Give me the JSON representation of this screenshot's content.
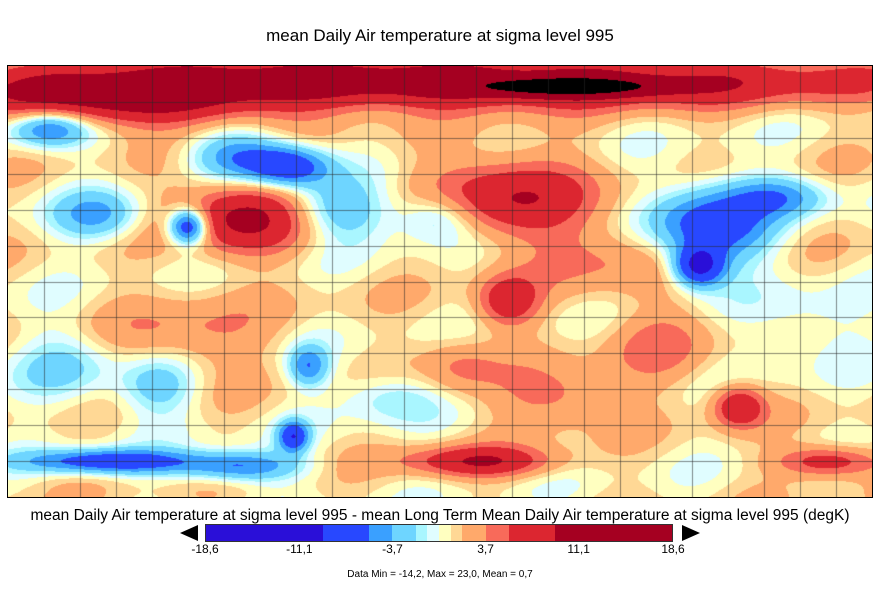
{
  "title": "mean Daily Air temperature at sigma level 995",
  "subtitle": "mean Daily Air temperature at sigma level 995 - mean Long Term Mean Daily Air temperature at sigma level 995 (degK)",
  "colorbar": {
    "ticks": [
      "-18,6",
      "-11,1",
      "-3,7",
      "3,7",
      "11,1",
      "18,6"
    ],
    "range": [
      -18.6,
      18.6
    ],
    "colors": [
      "#2a0fd8",
      "#2848ff",
      "#3aa0ff",
      "#6ed5ff",
      "#a9f6ff",
      "#e0fdff",
      "#ffffc0",
      "#ffd895",
      "#ffa96b",
      "#f86a5a",
      "#dc2630",
      "#a50021"
    ],
    "boundaries": [
      -18.6,
      -9.3,
      -5.58,
      -3.72,
      -1.86,
      -0.93,
      0,
      0.93,
      1.86,
      3.72,
      5.58,
      9.3,
      18.6
    ]
  },
  "stats": "Data Min = -14,2, Max = 23,0, Mean = 0,7",
  "map": {
    "projection": "cylindrical equidistant",
    "grid_spacing_deg": 15,
    "coastlines": true
  }
}
